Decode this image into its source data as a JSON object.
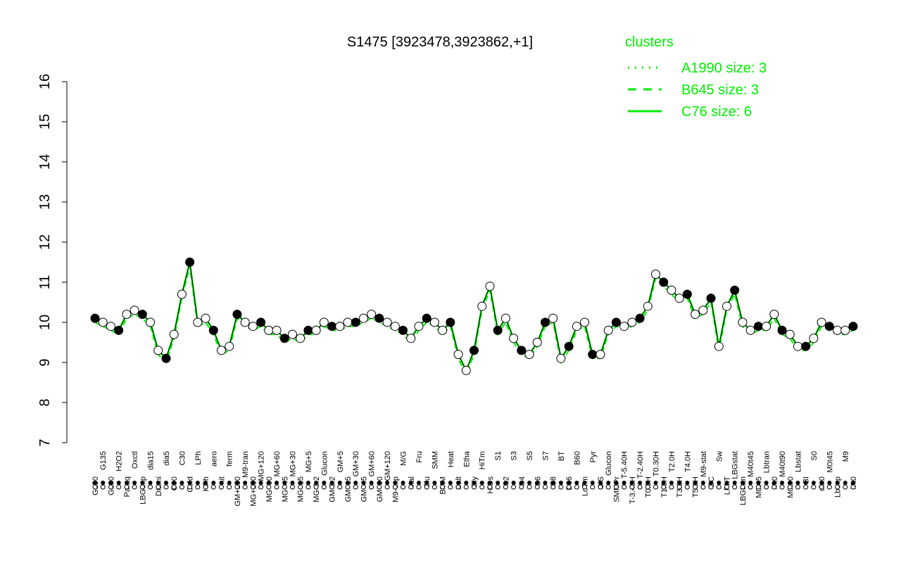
{
  "chart_data": {
    "type": "line",
    "title": "S1475 [3923478,3923862,+1]",
    "xlabel": "",
    "ylabel": "",
    "ylim": [
      7,
      16
    ],
    "yticks": [
      7,
      8,
      9,
      10,
      11,
      12,
      13,
      14,
      15,
      16
    ],
    "grid": false,
    "legend": {
      "title": "clusters",
      "placement": "top-right",
      "entries": [
        {
          "label": "A1990 size: 3",
          "style": "dotted"
        },
        {
          "label": "B645 size: 3",
          "style": "dashed"
        },
        {
          "label": "C76 size: 6",
          "style": "solid"
        }
      ]
    },
    "colors": {
      "series": "#00ee00",
      "points": "#000000",
      "text": "#00cc00"
    },
    "x_labels": [
      "G150",
      "G135",
      "G180",
      "H2O2",
      "Paraq",
      "Oxctl",
      "LBGexp",
      "dia15",
      "Diami",
      "dia5",
      "C90",
      "C30",
      "Cold",
      "LPh",
      "HPh",
      "aero",
      "nit",
      "ferm",
      "GM+150",
      "M9-tran",
      "MG+150",
      "MG+120",
      "MG+90",
      "MG+60",
      "MG+45",
      "MG+30",
      "MG+15",
      "MG+5",
      "MG-0.2",
      "Glucon",
      "GM-0.2",
      "GM+5",
      "GM+15",
      "GM+30",
      "GM+45",
      "GM+60",
      "GM+90",
      "GM+120",
      "M9-exp",
      "M/G",
      "Mal",
      "Fru",
      "Glu",
      "SMM",
      "BMM",
      "Heat",
      "Salt",
      "Etha",
      "Gly",
      "HiTm",
      "HiOs",
      "S1",
      "S2",
      "S3",
      "S4",
      "S5",
      "S6",
      "S7",
      "S8",
      "BT",
      "B36",
      "B60",
      "LoTm",
      "Pyr",
      "G/S",
      "Glucon",
      "SMMPr",
      "T-5.40H",
      "T-3.40H",
      "T-2.40H",
      "T0.0H",
      "T0.30H",
      "T1.0H",
      "T2.0H",
      "T3.0H",
      "T4.0H",
      "T5.0H",
      "M9-stat",
      "BC",
      "Sw",
      "LPhT",
      "LBGstat",
      "LBGtran",
      "M40t45",
      "M0t45",
      "Lbtran",
      "Mt0",
      "M40t90",
      "M0t90",
      "Lbstat",
      "BI",
      "S0",
      "dia0",
      "M0t45",
      "Lbexp",
      "M9",
      "Mt0"
    ],
    "series": [
      {
        "values": [
          10.1,
          10.0,
          9.9,
          9.8,
          10.2,
          10.3,
          10.2,
          10.0,
          9.3,
          9.1,
          9.7,
          10.7,
          11.5,
          10.0,
          10.1,
          9.8,
          9.3,
          9.4,
          10.2,
          10.0,
          9.9,
          10.0,
          9.8,
          9.8,
          9.6,
          9.7,
          9.6,
          9.8,
          9.8,
          10.0,
          9.9,
          9.9,
          10.0,
          10.0,
          10.1,
          10.2,
          10.1,
          10.0,
          9.9,
          9.8,
          9.6,
          9.9,
          10.1,
          10.0,
          9.8,
          10.0,
          9.2,
          8.8,
          9.3,
          10.4,
          10.9,
          9.8,
          10.1,
          9.6,
          9.3,
          9.2,
          9.5,
          10.0,
          10.1,
          9.1,
          9.4,
          9.9,
          10.0,
          9.2,
          9.2,
          9.8,
          10.0,
          9.9,
          10.0,
          10.1,
          10.4,
          11.2,
          11.0,
          10.8,
          10.6,
          10.7,
          10.2,
          10.3,
          10.6,
          9.4,
          10.4,
          10.8,
          10.0,
          9.8,
          9.9,
          9.9,
          10.2,
          9.8,
          9.7,
          9.4,
          9.4,
          9.6,
          10.0,
          9.9,
          9.8,
          9.8,
          9.9
        ]
      }
    ]
  }
}
